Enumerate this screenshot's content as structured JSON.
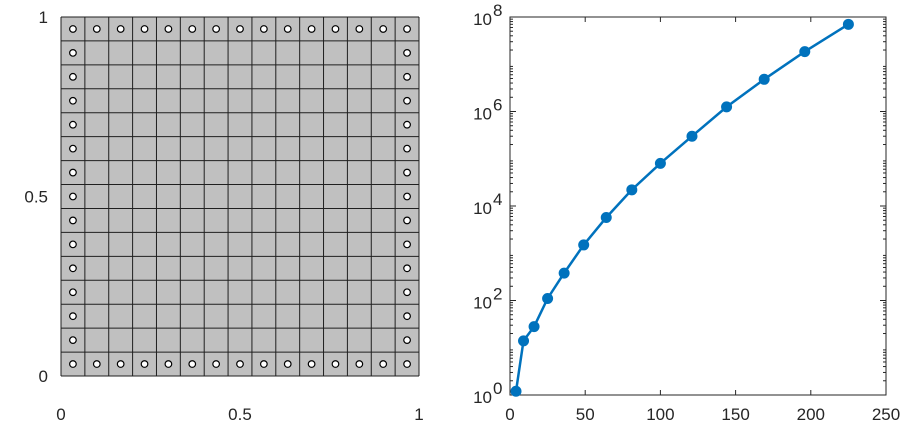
{
  "chart_data": [
    {
      "type": "mesh",
      "xlim": [
        0,
        1
      ],
      "ylim": [
        0,
        1
      ],
      "x_ticks": [
        0,
        0.5,
        1
      ],
      "x_tick_labels": [
        "0",
        "0.5",
        "1"
      ],
      "y_ticks": [
        0,
        0.5,
        1
      ],
      "y_tick_labels": [
        "0",
        "0.5",
        "1"
      ],
      "grid_divisions": 15,
      "fill_color": "#c0c0c0",
      "boundary_nodes": "top row, left column, right column and bottom row marked with open circles"
    },
    {
      "type": "line",
      "yscale": "log",
      "xlim": [
        0,
        250
      ],
      "ylim": [
        1,
        100000000
      ],
      "x_ticks": [
        0,
        50,
        100,
        150,
        200,
        250
      ],
      "x_tick_labels": [
        "0",
        "50",
        "100",
        "150",
        "200",
        "250"
      ],
      "y_ticks": [
        1,
        100,
        10000,
        1000000,
        100000000
      ],
      "y_tick_labels": [
        {
          "base": "10",
          "exp": "0"
        },
        {
          "base": "10",
          "exp": "2"
        },
        {
          "base": "10",
          "exp": "4"
        },
        {
          "base": "10",
          "exp": "6"
        },
        {
          "base": "10",
          "exp": "8"
        }
      ],
      "series": [
        {
          "color": "#0072bd",
          "x": [
            4,
            9,
            16,
            25,
            36,
            49,
            64,
            81,
            100,
            121,
            144,
            169,
            196,
            225
          ],
          "y": [
            1.2,
            14,
            28,
            110,
            380,
            1500,
            5700,
            22000,
            80000,
            300000,
            1250000,
            4800000,
            18500000,
            70000000
          ]
        }
      ]
    }
  ]
}
